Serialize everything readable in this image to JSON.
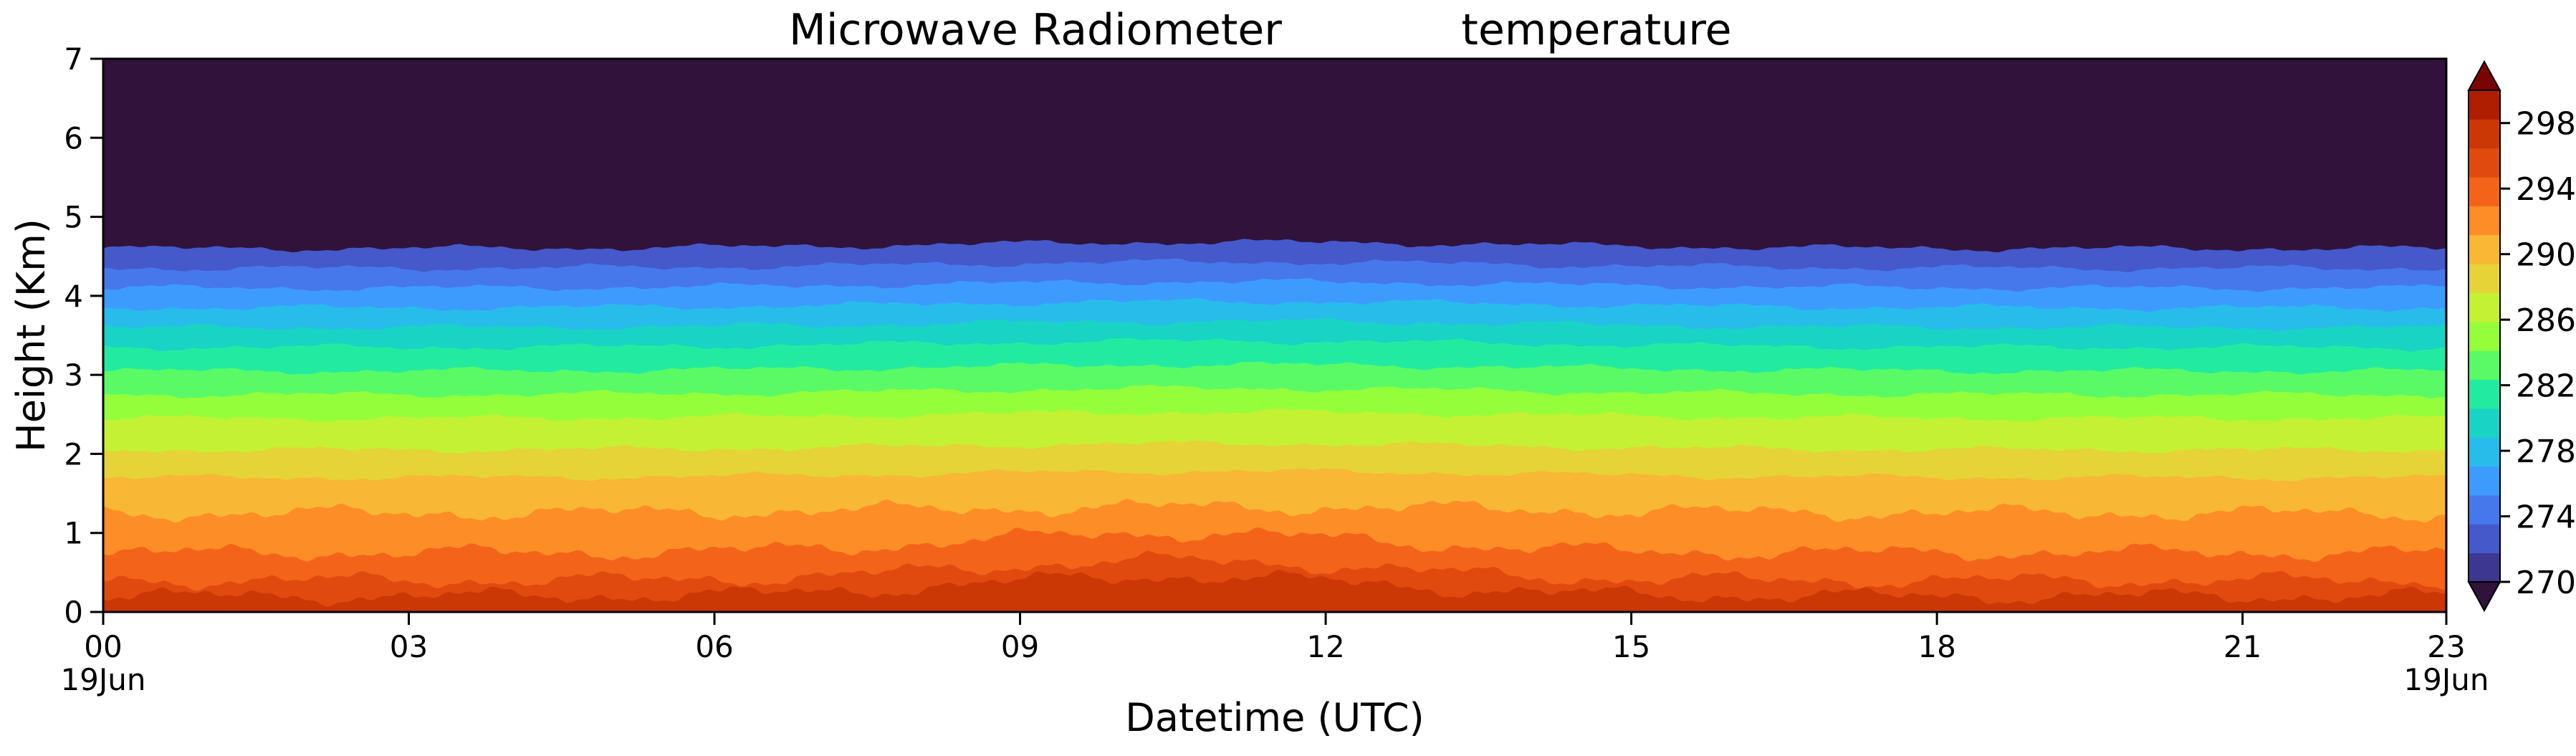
{
  "chart_data": {
    "type": "heatmap",
    "title_left": "Microwave Radiometer",
    "title_right": "temperature",
    "xlabel": "Datetime (UTC)",
    "ylabel": "Height (Km)",
    "x_ticks": [
      "00",
      "03",
      "06",
      "09",
      "12",
      "15",
      "18",
      "21",
      "23"
    ],
    "x_tick_hours": [
      0,
      3,
      6,
      9,
      12,
      15,
      18,
      21,
      23
    ],
    "x_date_first": "19Jun",
    "x_date_last": "19Jun",
    "xlim_hours": [
      0,
      23
    ],
    "y_ticks": [
      "0",
      "1",
      "2",
      "3",
      "4",
      "5",
      "6",
      "7"
    ],
    "ylim": [
      0,
      7
    ],
    "colorbar": {
      "min": 268,
      "max": 300,
      "step": 2,
      "extend": "both",
      "tick_values": [
        270,
        274,
        278,
        282,
        286,
        290,
        294,
        298
      ],
      "tick_labels": [
        "270",
        "274",
        "278",
        "282",
        "286",
        "290",
        "294",
        "298"
      ],
      "colors": [
        "#30123b",
        "#3e378f",
        "#4559cb",
        "#4778eb",
        "#3e9bfe",
        "#28bcea",
        "#19d3c5",
        "#22eba1",
        "#5afa66",
        "#95fe3b",
        "#c4f133",
        "#e5d338",
        "#f8b734",
        "#fd8d27",
        "#f3641a",
        "#e14a0f",
        "#cc3706",
        "#b01e01",
        "#7a0403"
      ]
    },
    "approx_level_heights_km": {
      "298": 0.2,
      "296": 0.4,
      "294": 0.75,
      "292": 1.25,
      "290": 1.7,
      "288": 2.05,
      "286": 2.45,
      "284": 2.75,
      "282": 3.05,
      "280": 3.35,
      "278": 3.6,
      "276": 3.85,
      "274": 4.1,
      "272": 4.35,
      "270": 4.6
    }
  }
}
